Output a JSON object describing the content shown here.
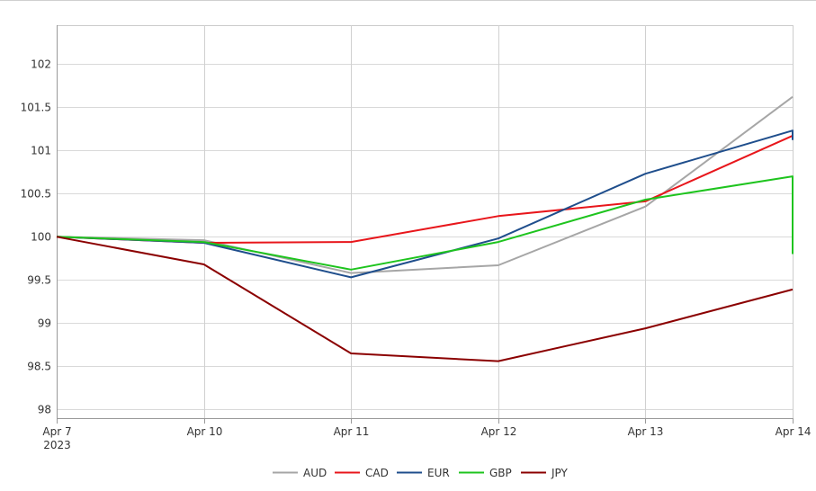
{
  "chart_data": {
    "type": "line",
    "title": "",
    "xlabel": "",
    "ylabel": "",
    "x": [
      "Apr 7",
      "Apr 10",
      "Apr 11",
      "Apr 12",
      "Apr 13",
      "Apr 14"
    ],
    "x_tick_labels": [
      {
        "label": "Apr 7",
        "sublabel": "2023"
      },
      {
        "label": "Apr 10",
        "sublabel": ""
      },
      {
        "label": "Apr 11",
        "sublabel": ""
      },
      {
        "label": "Apr 12",
        "sublabel": ""
      },
      {
        "label": "Apr 13",
        "sublabel": ""
      },
      {
        "label": "Apr 14",
        "sublabel": ""
      }
    ],
    "ylim": [
      97.9,
      102.45
    ],
    "y_ticks": [
      98,
      98.5,
      99,
      99.5,
      100,
      100.5,
      101,
      101.5,
      102
    ],
    "y_tick_labels": [
      "98",
      "98.5",
      "99",
      "99.5",
      "100",
      "100.5",
      "101",
      "101.5",
      "102"
    ],
    "grid": true,
    "legend_position": "bottom-center",
    "series": [
      {
        "name": "AUD",
        "color": "#a6a6a6",
        "values": [
          100,
          99.96,
          99.58,
          99.67,
          100.35,
          101.62
        ]
      },
      {
        "name": "CAD",
        "color": "#e8161b",
        "values": [
          100,
          99.93,
          99.94,
          100.24,
          100.41,
          101.17
        ]
      },
      {
        "name": "EUR",
        "color": "#1f4e8c",
        "values": [
          100,
          99.93,
          99.53,
          99.98,
          100.73,
          101.23
        ],
        "end_drop": 101.12
      },
      {
        "name": "GBP",
        "color": "#1ec41e",
        "values": [
          100,
          99.94,
          99.62,
          99.94,
          100.43,
          100.7
        ],
        "end_drop": 99.8
      },
      {
        "name": "JPY",
        "color": "#8b0000",
        "values": [
          100,
          99.68,
          98.65,
          98.56,
          98.94,
          99.39
        ]
      }
    ]
  }
}
